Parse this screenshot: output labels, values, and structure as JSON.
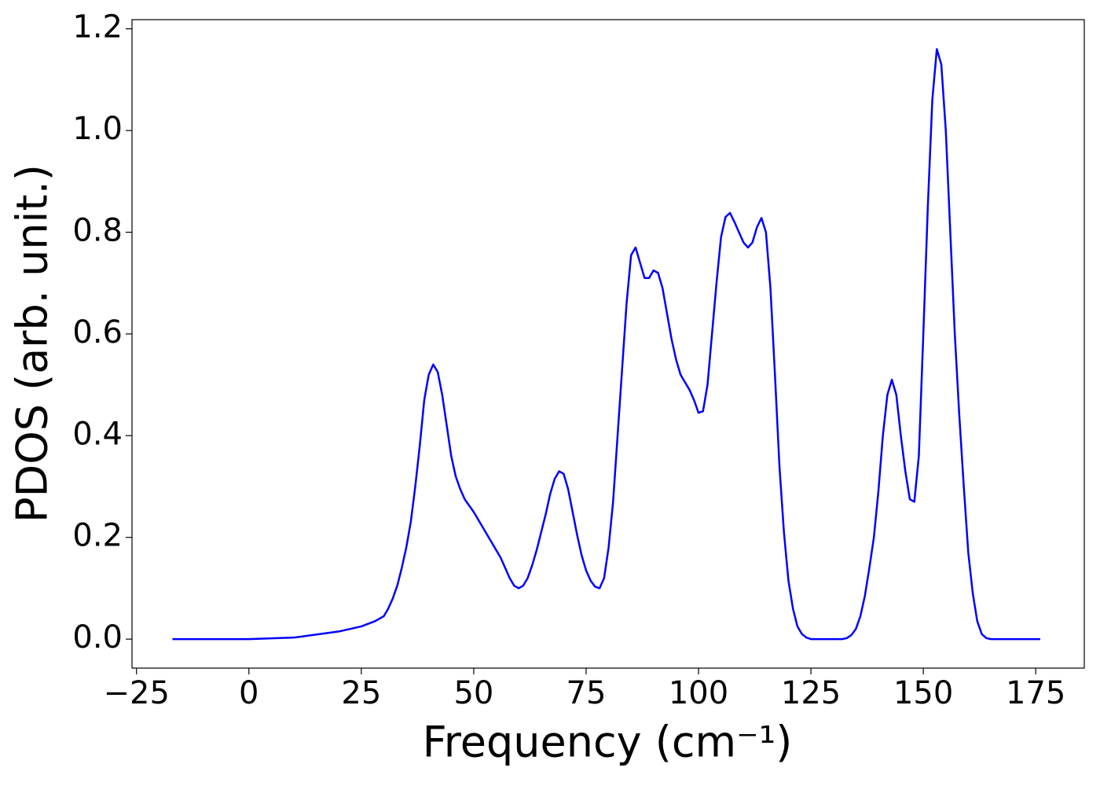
{
  "chart_data": {
    "type": "line",
    "xlabel": "Frequency (cm⁻¹)",
    "ylabel": "PDOS (arb. unit.)",
    "xlim": [
      -26.0,
      185.8
    ],
    "ylim": [
      -0.057,
      1.218
    ],
    "xticks": [
      {
        "value": -25,
        "label": "−25"
      },
      0,
      25,
      50,
      75,
      100,
      125,
      150,
      175
    ],
    "yticks": [
      {
        "value": 0,
        "label": "0.0"
      },
      0.2,
      0.4,
      0.6,
      0.8,
      {
        "value": 1,
        "label": "1.0"
      },
      1.2
    ],
    "series": [
      {
        "color": "#0000ff",
        "x": [
          -17,
          0,
          10,
          20,
          25,
          28,
          30,
          31,
          32,
          33,
          34,
          35,
          36,
          37,
          38,
          39,
          40,
          41,
          42,
          43,
          44,
          45,
          46,
          47,
          48,
          50,
          52,
          54,
          56,
          57,
          58,
          59,
          60,
          61,
          62,
          63,
          64,
          65,
          66,
          67,
          68,
          69,
          70,
          71,
          72,
          73,
          74,
          75,
          76,
          77,
          78,
          79,
          80,
          81,
          82,
          83,
          84,
          85,
          86,
          87,
          88,
          89,
          90,
          91,
          92,
          93,
          94,
          95,
          96,
          97,
          98,
          99,
          100,
          101,
          102,
          103,
          104,
          105,
          106,
          107,
          108,
          109,
          110,
          111,
          112,
          113,
          114,
          115,
          116,
          117,
          118,
          119,
          120,
          121,
          122,
          123,
          124,
          125,
          132,
          133,
          134,
          135,
          136,
          137,
          138,
          139,
          140,
          141,
          142,
          143,
          144,
          145,
          146,
          147,
          148,
          149,
          150,
          151,
          152,
          153,
          154,
          155,
          156,
          157,
          158,
          159,
          160,
          161,
          162,
          163,
          164,
          165,
          176
        ],
        "values": [
          0,
          0,
          0.003,
          0.015,
          0.025,
          0.035,
          0.045,
          0.06,
          0.08,
          0.105,
          0.14,
          0.18,
          0.23,
          0.3,
          0.38,
          0.47,
          0.52,
          0.54,
          0.525,
          0.48,
          0.42,
          0.36,
          0.32,
          0.295,
          0.275,
          0.25,
          0.22,
          0.19,
          0.16,
          0.14,
          0.12,
          0.105,
          0.1,
          0.105,
          0.12,
          0.145,
          0.175,
          0.21,
          0.245,
          0.285,
          0.315,
          0.33,
          0.325,
          0.295,
          0.25,
          0.205,
          0.165,
          0.135,
          0.115,
          0.103,
          0.1,
          0.12,
          0.18,
          0.27,
          0.4,
          0.53,
          0.66,
          0.755,
          0.77,
          0.74,
          0.71,
          0.71,
          0.725,
          0.72,
          0.69,
          0.64,
          0.59,
          0.55,
          0.52,
          0.505,
          0.49,
          0.47,
          0.445,
          0.448,
          0.5,
          0.6,
          0.7,
          0.79,
          0.83,
          0.838,
          0.82,
          0.8,
          0.78,
          0.77,
          0.78,
          0.81,
          0.828,
          0.8,
          0.69,
          0.52,
          0.34,
          0.21,
          0.115,
          0.06,
          0.025,
          0.01,
          0.003,
          0,
          0,
          0.002,
          0.008,
          0.02,
          0.045,
          0.085,
          0.14,
          0.2,
          0.29,
          0.4,
          0.48,
          0.51,
          0.48,
          0.4,
          0.33,
          0.275,
          0.27,
          0.36,
          0.6,
          0.85,
          1.06,
          1.16,
          1.13,
          1.0,
          0.8,
          0.6,
          0.44,
          0.3,
          0.17,
          0.09,
          0.035,
          0.01,
          0.002,
          0,
          0
        ]
      }
    ]
  }
}
